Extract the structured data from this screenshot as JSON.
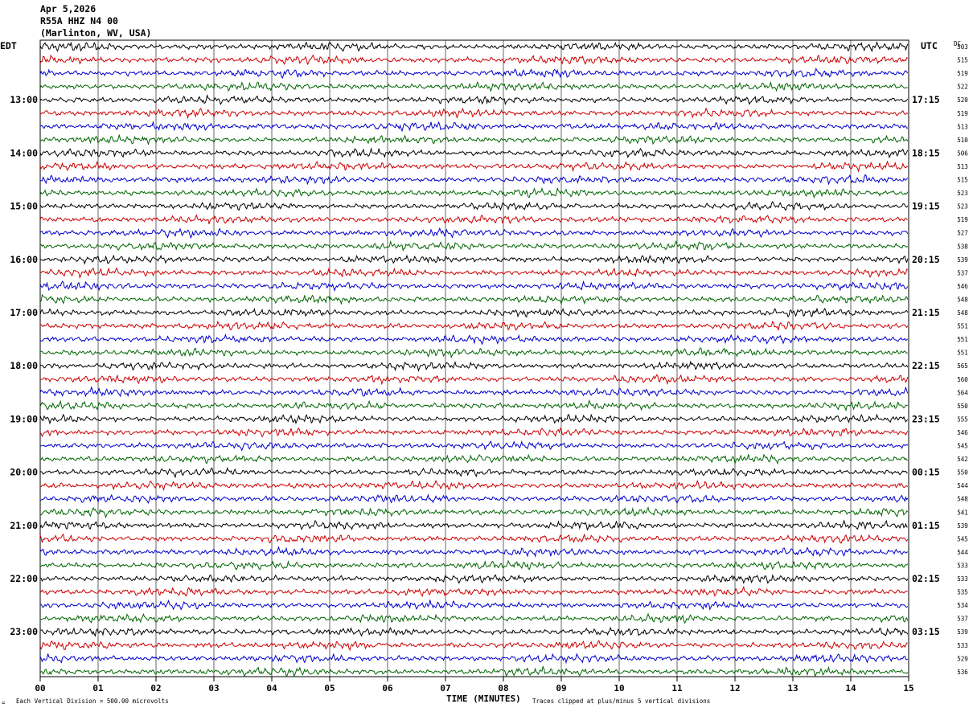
{
  "header": {
    "date": "Apr 5,2026",
    "station": "R55A HHZ N4 00",
    "location": "(Marlinton, WV, USA)"
  },
  "labels": {
    "left_tz": "EDT",
    "right_tz": "UTC",
    "dc_label": "DC",
    "xlabel": "TIME (MINUTES)",
    "scale_note": "Each Vertical Division =  500.00 microvolts",
    "clip_note": "Traces clipped at plus/minus 5 vertical divisions",
    "corner_mark": "="
  },
  "colors": {
    "trace_cycle": [
      "#000000",
      "#cc0000",
      "#0000cc",
      "#006600"
    ],
    "grid": "#000000",
    "background": "#ffffff"
  },
  "chart_data": {
    "type": "helicorder",
    "x_ticks": [
      "00",
      "01",
      "02",
      "03",
      "04",
      "05",
      "06",
      "07",
      "08",
      "09",
      "10",
      "11",
      "12",
      "13",
      "14",
      "15"
    ],
    "xlim": [
      0,
      15
    ],
    "minutes_per_line": 15,
    "line_count": 48,
    "left_hour_labels": [
      "13:00",
      "14:00",
      "15:00",
      "16:00",
      "17:00",
      "18:00",
      "19:00",
      "20:00",
      "21:00",
      "22:00",
      "23:00"
    ],
    "right_hour_labels": [
      "17:15",
      "18:15",
      "19:15",
      "20:15",
      "21:15",
      "22:15",
      "23:15",
      "00:15",
      "01:15",
      "02:15",
      "03:15"
    ],
    "dc_offsets": [
      503,
      515,
      519,
      522,
      520,
      519,
      513,
      510,
      506,
      513,
      515,
      523,
      523,
      519,
      527,
      538,
      539,
      537,
      546,
      548,
      548,
      551,
      551,
      551,
      565,
      560,
      564,
      550,
      555,
      546,
      545,
      542,
      550,
      544,
      548,
      541,
      539,
      545,
      544,
      533,
      533,
      535,
      534,
      537,
      539,
      533,
      529,
      536
    ]
  }
}
